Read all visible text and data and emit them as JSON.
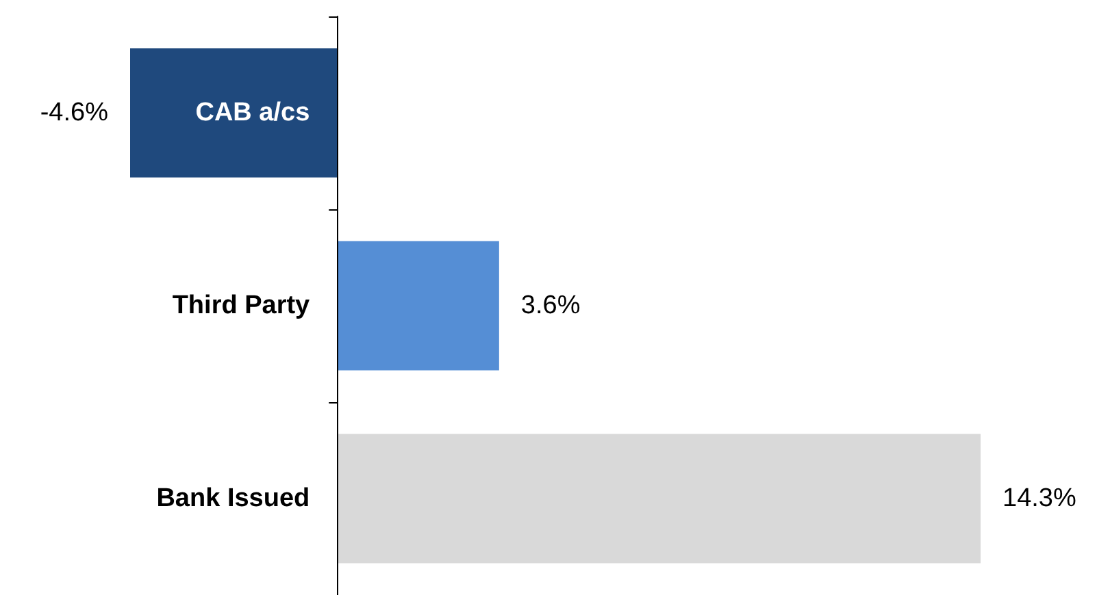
{
  "chart_data": {
    "type": "bar",
    "orientation": "horizontal",
    "categories": [
      "CAB a/cs",
      "Third Party",
      "Bank Issued"
    ],
    "values": [
      -4.6,
      3.6,
      14.3
    ],
    "colors": [
      "#1f497d",
      "#558ed5",
      "#d9d9d9"
    ],
    "value_labels": [
      "-4.6%",
      "3.6%",
      "14.3%"
    ]
  }
}
